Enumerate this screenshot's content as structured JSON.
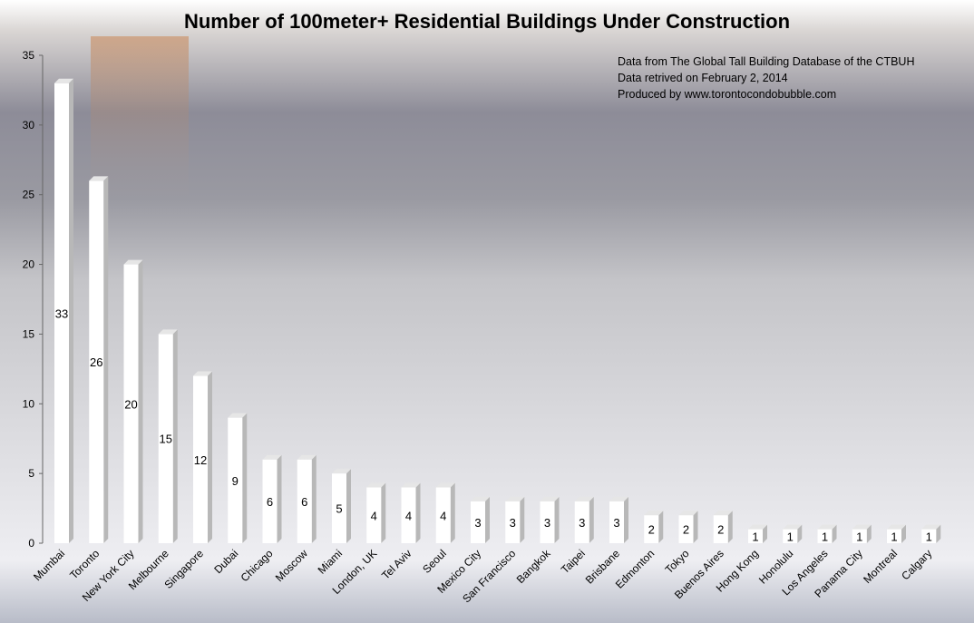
{
  "chart_data": {
    "type": "bar",
    "title": "Number of 100meter+  Residential Buildings Under Construction",
    "xlabel": "",
    "ylabel": "",
    "ylim": [
      0,
      35
    ],
    "yticks": [
      0,
      5,
      10,
      15,
      20,
      25,
      30,
      35
    ],
    "grid": false,
    "data_labels": true,
    "annotations": [
      "Data from The Global Tall Building Database of the CTBUH",
      "Data retrived on February 2, 2014",
      "Produced by www.torontocondobubble.com"
    ],
    "categories": [
      "Mumbai",
      "Toronto",
      "New York City",
      "Melbourne",
      "Singapore",
      "Dubai",
      "Chicago",
      "Moscow",
      "Miami",
      "London, UK",
      "Tel Aviv",
      "Seoul",
      "Mexico City",
      "San Francisco",
      "Bangkok",
      "Taipei",
      "Brisbane",
      "Edmonton",
      "Tokyo",
      "Buenos Aires",
      "Hong Kong",
      "Honolulu",
      "Los Angeles",
      "Panama City",
      "Montreal",
      "Calgary"
    ],
    "values": [
      33,
      26,
      20,
      15,
      12,
      9,
      6,
      6,
      5,
      4,
      4,
      4,
      3,
      3,
      3,
      3,
      3,
      2,
      2,
      2,
      1,
      1,
      1,
      1,
      1,
      1
    ],
    "colors": {
      "bar_front": "#ffffff",
      "bar_side": "#b8b8b8",
      "bar_top": "#e6e6e6",
      "text": "#000000"
    }
  }
}
